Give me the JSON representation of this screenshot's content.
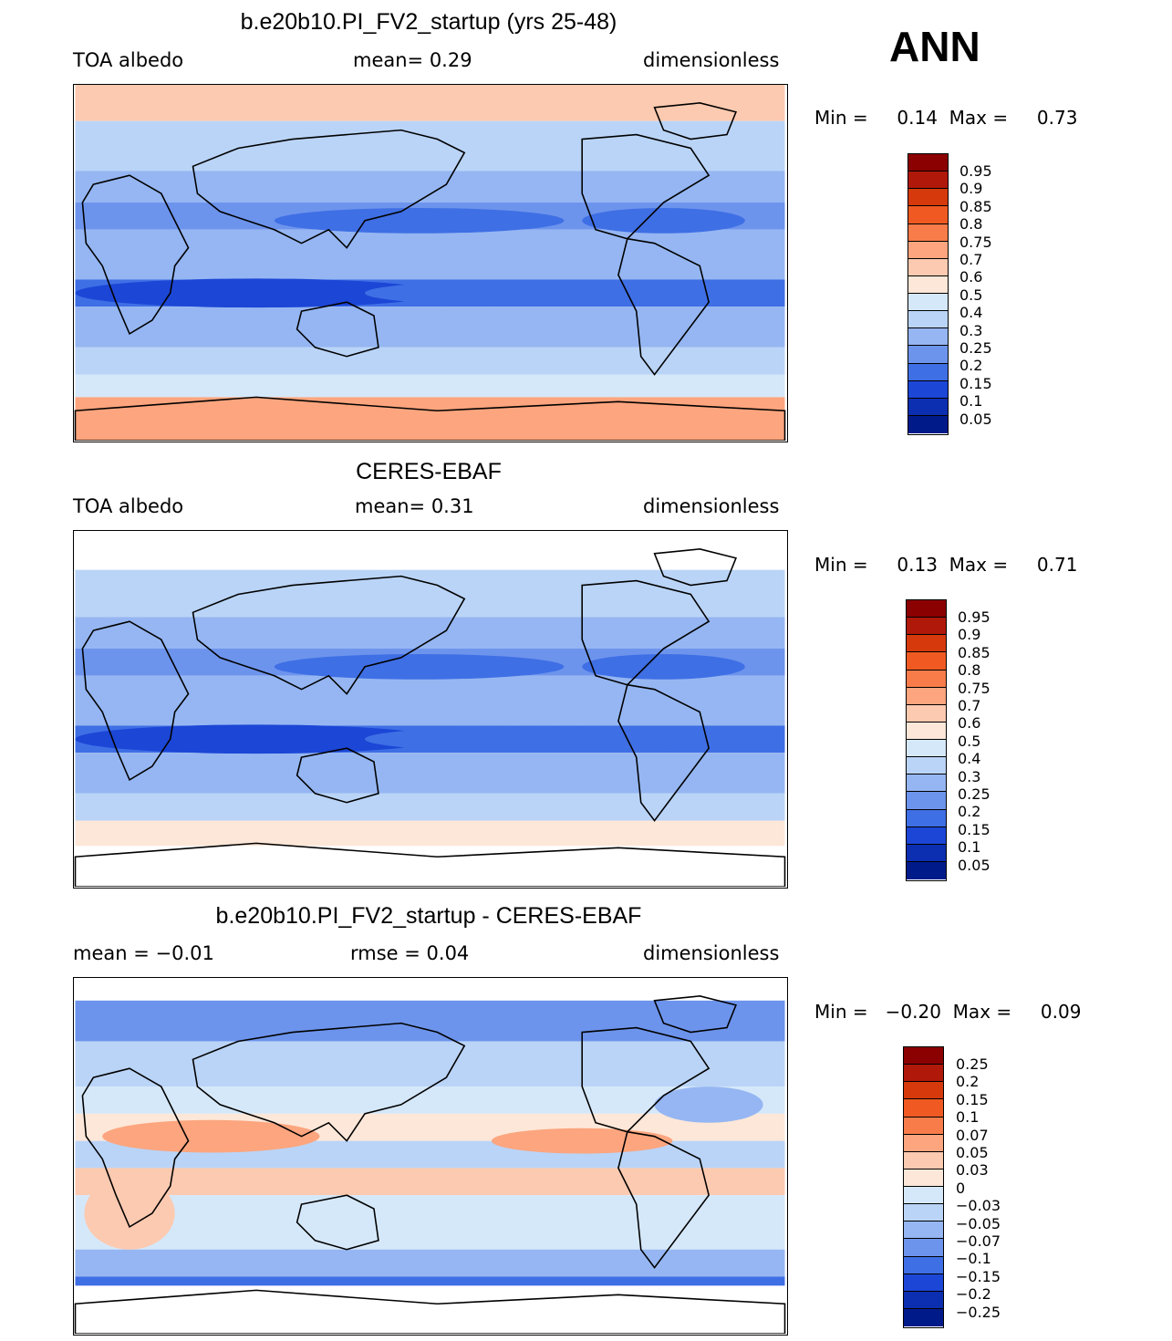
{
  "season": "ANN",
  "panels": [
    {
      "title": "b.e20b10.PI_FV2_startup (yrs 25-48)",
      "left": "TOA albedo",
      "mid": "mean=    0.29",
      "right": "dimensionless",
      "minmax": "Min =     0.14  Max =     0.73",
      "type": "field",
      "cbar_labels": [
        "0.95",
        "0.9",
        "0.85",
        "0.8",
        "0.75",
        "0.7",
        "0.6",
        "0.5",
        "0.4",
        "0.3",
        "0.25",
        "0.2",
        "0.15",
        "0.1",
        "0.05"
      ]
    },
    {
      "title": "CERES-EBAF",
      "left": "TOA albedo",
      "mid": "mean=    0.31",
      "right": "dimensionless",
      "minmax": "Min =     0.13  Max =     0.71",
      "type": "field",
      "cbar_labels": [
        "0.95",
        "0.9",
        "0.85",
        "0.8",
        "0.75",
        "0.7",
        "0.6",
        "0.5",
        "0.4",
        "0.3",
        "0.25",
        "0.2",
        "0.15",
        "0.1",
        "0.05"
      ]
    },
    {
      "title": "b.e20b10.PI_FV2_startup - CERES-EBAF",
      "left": "mean =   −0.01",
      "mid": "rmse =     0.04",
      "right": "dimensionless",
      "minmax": "Min =   −0.20  Max =     0.09",
      "type": "diff",
      "cbar_labels": [
        "0.25",
        "0.2",
        "0.15",
        "0.1",
        "0.07",
        "0.05",
        "0.03",
        "0",
        "−0.03",
        "−0.05",
        "−0.07",
        "−0.1",
        "−0.15",
        "−0.2",
        "−0.25"
      ]
    }
  ],
  "colors": {
    "palette": [
      "#8b0000",
      "#b0180a",
      "#d63a0c",
      "#f05a22",
      "#f87c4a",
      "#fca57e",
      "#fccab0",
      "#fde7d8",
      "#d5e8fa",
      "#bad4f7",
      "#95b6f2",
      "#6d94ec",
      "#3f6fe5",
      "#1c46d6",
      "#0c2eb0",
      "#001a8a"
    ],
    "land_outline": "#000000"
  }
}
